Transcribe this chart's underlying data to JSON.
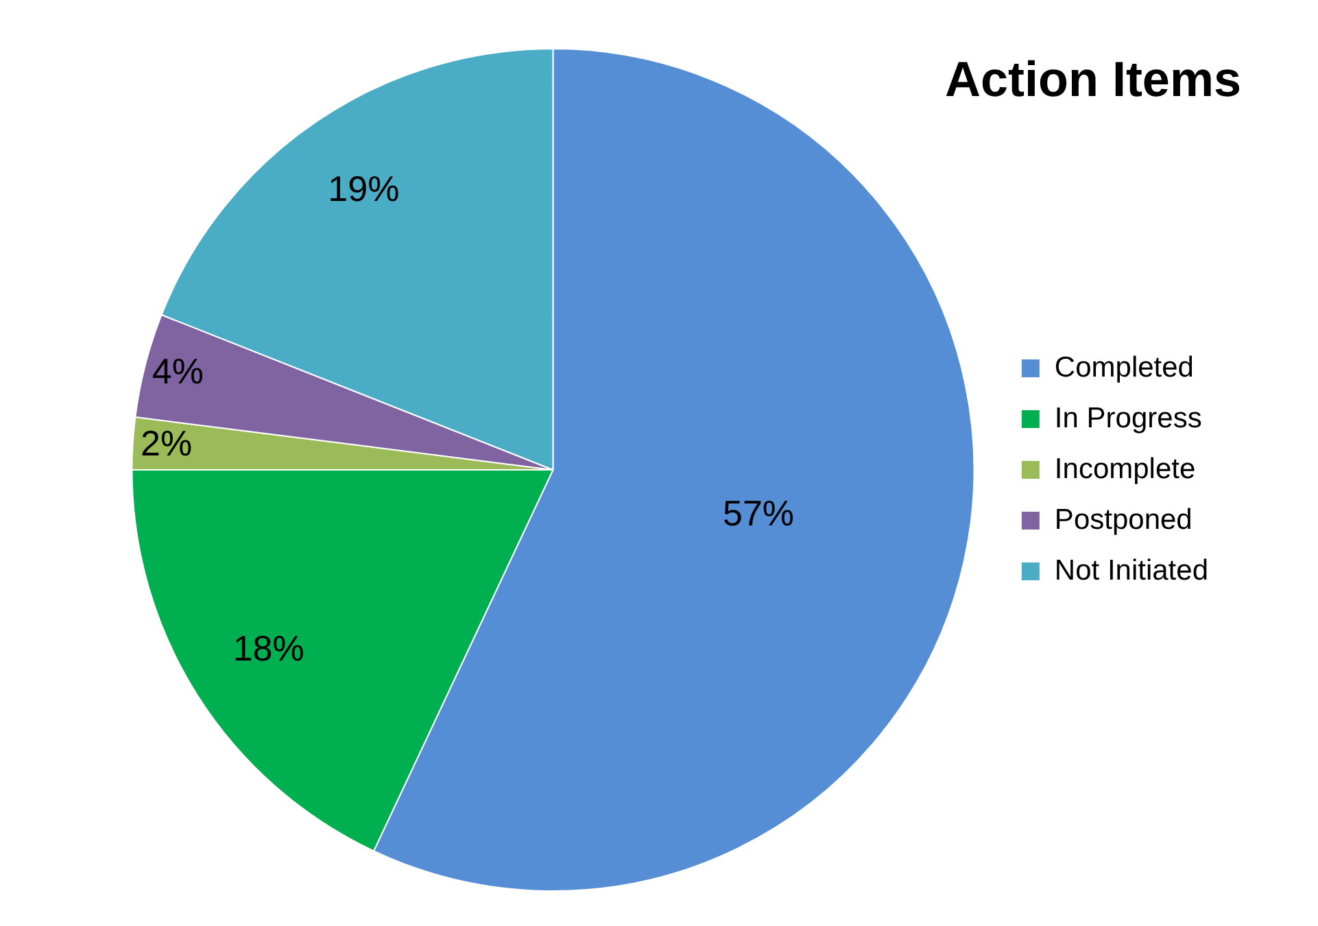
{
  "chart_data": {
    "type": "pie",
    "title": "Action Items",
    "categories": [
      "Completed",
      "In Progress",
      "Incomplete",
      "Postponed",
      "Not Initiated"
    ],
    "values": [
      57,
      18,
      2,
      4,
      19
    ],
    "colors": [
      "#558ed5",
      "#00b050",
      "#9bbb59",
      "#8064a2",
      "#4bacc6"
    ],
    "value_labels": [
      "57%",
      "18%",
      "2%",
      "4%",
      "19%"
    ],
    "legend": "right"
  }
}
